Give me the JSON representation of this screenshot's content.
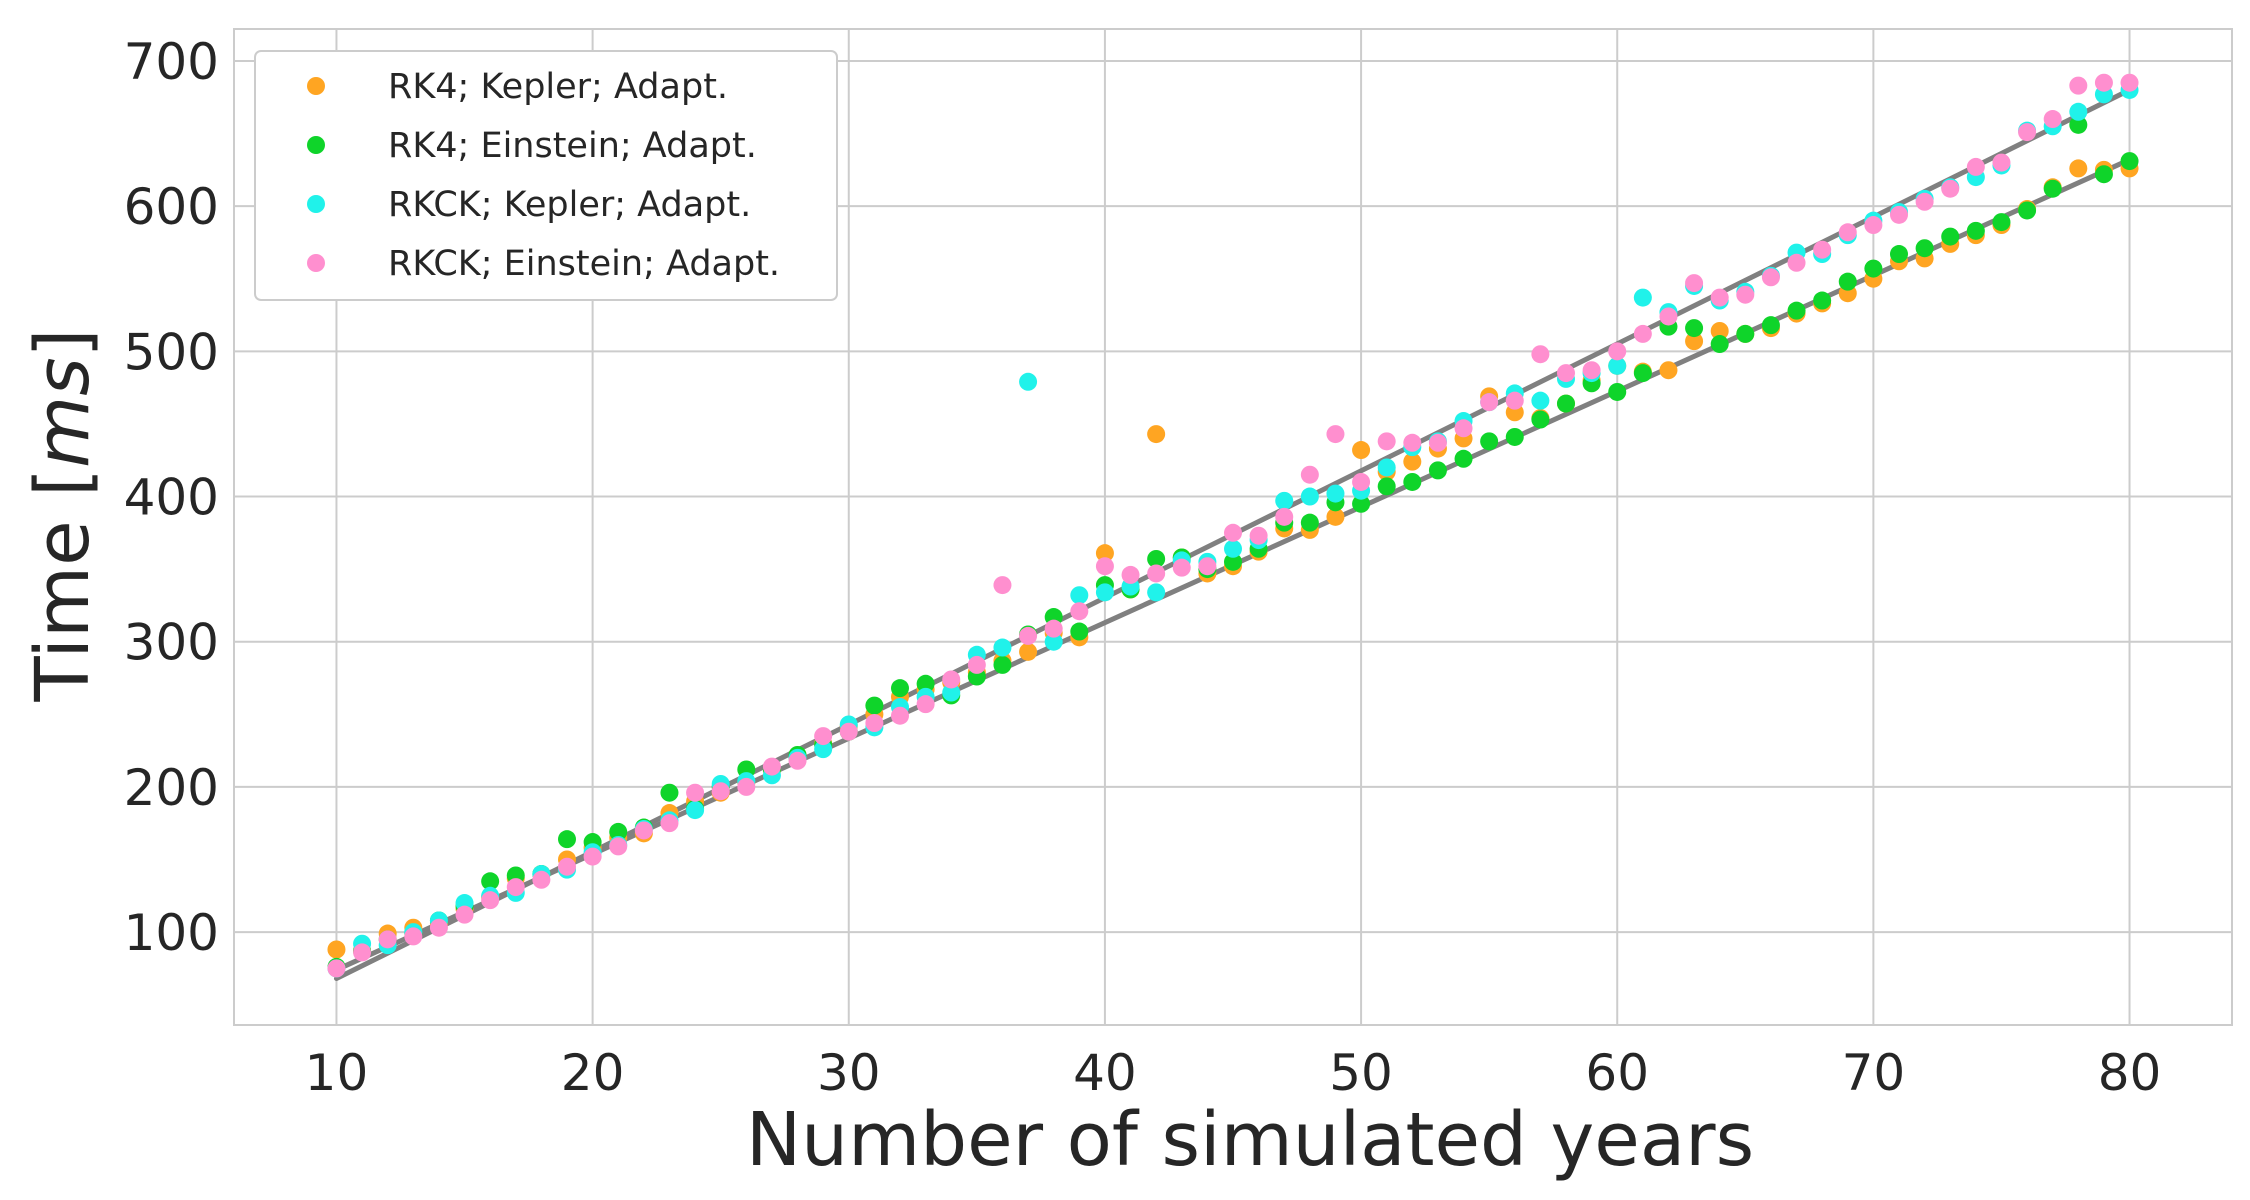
{
  "chart_data": {
    "type": "scatter",
    "xlabel": "Number of simulated years",
    "ylabel_main": "Time [",
    "ylabel_italic": "ms",
    "ylabel_close": "]",
    "xlim": [
      6,
      84
    ],
    "ylim": [
      36,
      722
    ],
    "xticks": [
      10,
      20,
      30,
      40,
      50,
      60,
      70,
      80
    ],
    "yticks": [
      100,
      200,
      300,
      400,
      500,
      600,
      700
    ],
    "grid": true,
    "legend_position": "top-left",
    "x": [
      10,
      11,
      12,
      13,
      14,
      15,
      16,
      17,
      18,
      19,
      20,
      21,
      22,
      23,
      24,
      25,
      26,
      27,
      28,
      29,
      30,
      31,
      32,
      33,
      34,
      35,
      36,
      37,
      38,
      39,
      40,
      41,
      42,
      43,
      44,
      45,
      46,
      47,
      48,
      49,
      50,
      51,
      52,
      53,
      54,
      55,
      56,
      57,
      58,
      59,
      60,
      61,
      62,
      63,
      64,
      65,
      66,
      67,
      68,
      69,
      70,
      71,
      72,
      73,
      74,
      75,
      76,
      77,
      78,
      79,
      80
    ],
    "series": [
      {
        "name": "RK4; Kepler; Adapt.",
        "color": "#ffa522",
        "values": [
          88,
          87,
          99,
          103,
          106,
          116,
          124,
          137,
          140,
          150,
          158,
          165,
          168,
          182,
          190,
          196,
          203,
          211,
          220,
          230,
          242,
          250,
          262,
          267,
          272,
          279,
          287,
          293,
          306,
          303,
          361,
          336,
          443,
          358,
          347,
          352,
          362,
          378,
          377,
          386,
          432,
          417,
          424,
          433,
          440,
          469,
          458,
          454,
          464,
          480,
          490,
          486,
          487,
          507,
          514,
          512,
          516,
          526,
          533,
          540,
          550,
          562,
          564,
          574,
          580,
          587,
          598,
          613,
          626,
          625,
          626
        ]
      },
      {
        "name": "RK4; Einstein; Adapt.",
        "color": "#0fd42a",
        "values": [
          76,
          87,
          95,
          99,
          108,
          118,
          135,
          139,
          140,
          164,
          162,
          169,
          172,
          196,
          185,
          200,
          212,
          212,
          222,
          229,
          238,
          256,
          268,
          271,
          263,
          276,
          284,
          305,
          317,
          307,
          339,
          336,
          357,
          358,
          350,
          355,
          364,
          382,
          382,
          396,
          395,
          407,
          410,
          418,
          426,
          438,
          441,
          453,
          464,
          478,
          472,
          485,
          517,
          516,
          505,
          512,
          518,
          528,
          535,
          548,
          557,
          567,
          571,
          579,
          583,
          589,
          597,
          612,
          656,
          622,
          631
        ]
      },
      {
        "name": "RKCK; Kepler; Adapt.",
        "color": "#20f2ea",
        "values": [
          75,
          92,
          91,
          100,
          108,
          120,
          125,
          127,
          140,
          143,
          155,
          160,
          171,
          177,
          184,
          202,
          204,
          208,
          220,
          226,
          243,
          241,
          255,
          262,
          265,
          291,
          296,
          479,
          300,
          332,
          334,
          338,
          334,
          356,
          355,
          364,
          370,
          397,
          400,
          402,
          404,
          420,
          434,
          438,
          452,
          465,
          471,
          466,
          481,
          485,
          490,
          537,
          527,
          545,
          535,
          541,
          552,
          568,
          567,
          580,
          590,
          596,
          605,
          613,
          620,
          628,
          652,
          655,
          665,
          677,
          680
        ]
      },
      {
        "name": "RKCK; Einstein; Adapt.",
        "color": "#ff8fcf",
        "values": [
          75,
          86,
          95,
          97,
          103,
          112,
          122,
          131,
          136,
          145,
          152,
          159,
          170,
          175,
          196,
          197,
          200,
          214,
          218,
          235,
          238,
          244,
          249,
          257,
          274,
          284,
          339,
          304,
          309,
          321,
          352,
          346,
          347,
          351,
          352,
          375,
          373,
          386,
          415,
          443,
          410,
          438,
          437,
          437,
          447,
          465,
          466,
          498,
          485,
          487,
          500,
          512,
          524,
          547,
          537,
          539,
          551,
          561,
          570,
          582,
          587,
          594,
          603,
          612,
          627,
          630,
          651,
          660,
          683,
          685,
          685
        ]
      }
    ],
    "fit_lines": [
      {
        "from": [
          10,
          68
        ],
        "to": [
          80,
          680
        ],
        "color": "#808080"
      },
      {
        "from": [
          10,
          74
        ],
        "to": [
          80,
          632
        ],
        "color": "#808080"
      }
    ]
  }
}
